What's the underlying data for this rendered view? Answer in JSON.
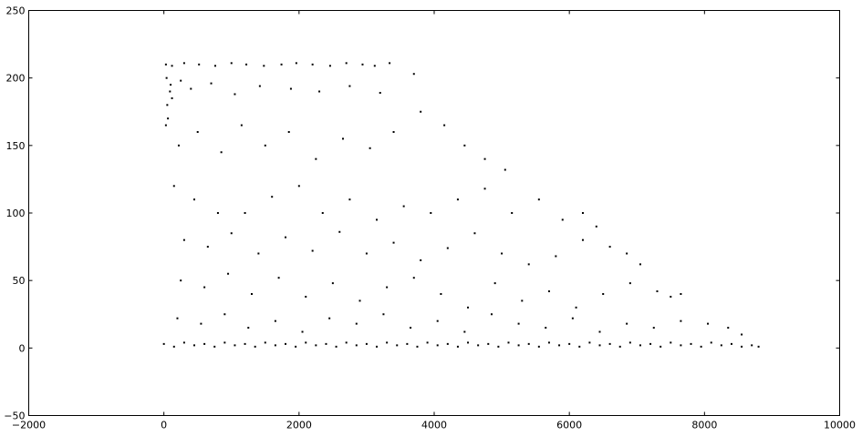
{
  "chart_data": {
    "type": "scatter",
    "title": "",
    "xlabel": "",
    "ylabel": "",
    "xlim": [
      -2000,
      10000
    ],
    "ylim": [
      -50,
      250
    ],
    "x_ticks": [
      -2000,
      0,
      2000,
      4000,
      6000,
      8000,
      10000
    ],
    "y_ticks": [
      -50,
      0,
      50,
      100,
      150,
      200,
      250
    ],
    "x_tick_labels": [
      "−2000",
      "0",
      "2000",
      "4000",
      "6000",
      "8000",
      "10000"
    ],
    "y_tick_labels": [
      "−50",
      "0",
      "50",
      "100",
      "150",
      "200",
      "250"
    ],
    "grid": false,
    "legend": "none",
    "marker_color": "#000000",
    "series": [
      {
        "points": [
          [
            30,
            210
          ],
          [
            120,
            209
          ],
          [
            300,
            211
          ],
          [
            520,
            210
          ],
          [
            760,
            209
          ],
          [
            1000,
            211
          ],
          [
            1220,
            210
          ],
          [
            1480,
            209
          ],
          [
            1740,
            210
          ],
          [
            1960,
            211
          ],
          [
            2200,
            210
          ],
          [
            2460,
            209
          ],
          [
            2700,
            211
          ],
          [
            2940,
            210
          ],
          [
            3120,
            209
          ],
          [
            3340,
            211
          ],
          [
            40,
            200
          ],
          [
            90,
            190
          ],
          [
            50,
            180
          ],
          [
            120,
            185
          ],
          [
            60,
            170
          ],
          [
            30,
            165
          ],
          [
            100,
            195
          ],
          [
            250,
            198
          ],
          [
            400,
            192
          ],
          [
            700,
            196
          ],
          [
            1050,
            188
          ],
          [
            1420,
            194
          ],
          [
            1880,
            192
          ],
          [
            2300,
            190
          ],
          [
            2750,
            194
          ],
          [
            3200,
            189
          ],
          [
            3700,
            203
          ],
          [
            220,
            150
          ],
          [
            500,
            160
          ],
          [
            850,
            145
          ],
          [
            1150,
            165
          ],
          [
            1500,
            150
          ],
          [
            1850,
            160
          ],
          [
            2250,
            140
          ],
          [
            2650,
            155
          ],
          [
            3050,
            148
          ],
          [
            3400,
            160
          ],
          [
            3800,
            175
          ],
          [
            4150,
            165
          ],
          [
            4450,
            150
          ],
          [
            4750,
            140
          ],
          [
            5050,
            132
          ],
          [
            150,
            120
          ],
          [
            450,
            110
          ],
          [
            800,
            100
          ],
          [
            1200,
            100
          ],
          [
            1600,
            112
          ],
          [
            2000,
            120
          ],
          [
            2350,
            100
          ],
          [
            2750,
            110
          ],
          [
            3150,
            95
          ],
          [
            3550,
            105
          ],
          [
            3950,
            100
          ],
          [
            4350,
            110
          ],
          [
            4750,
            118
          ],
          [
            5150,
            100
          ],
          [
            5550,
            110
          ],
          [
            5900,
            95
          ],
          [
            6200,
            100
          ],
          [
            6400,
            90
          ],
          [
            300,
            80
          ],
          [
            650,
            75
          ],
          [
            1000,
            85
          ],
          [
            1400,
            70
          ],
          [
            1800,
            82
          ],
          [
            2200,
            72
          ],
          [
            2600,
            86
          ],
          [
            3000,
            70
          ],
          [
            3400,
            78
          ],
          [
            3800,
            65
          ],
          [
            4200,
            74
          ],
          [
            4600,
            85
          ],
          [
            5000,
            70
          ],
          [
            5400,
            62
          ],
          [
            5800,
            68
          ],
          [
            6200,
            80
          ],
          [
            6600,
            75
          ],
          [
            6850,
            70
          ],
          [
            7050,
            62
          ],
          [
            250,
            50
          ],
          [
            600,
            45
          ],
          [
            950,
            55
          ],
          [
            1300,
            40
          ],
          [
            1700,
            52
          ],
          [
            2100,
            38
          ],
          [
            2500,
            48
          ],
          [
            2900,
            35
          ],
          [
            3300,
            45
          ],
          [
            3700,
            52
          ],
          [
            4100,
            40
          ],
          [
            4500,
            30
          ],
          [
            4900,
            48
          ],
          [
            5300,
            35
          ],
          [
            5700,
            42
          ],
          [
            6100,
            30
          ],
          [
            6500,
            40
          ],
          [
            6900,
            48
          ],
          [
            7300,
            42
          ],
          [
            7500,
            38
          ],
          [
            7650,
            40
          ],
          [
            200,
            22
          ],
          [
            550,
            18
          ],
          [
            900,
            25
          ],
          [
            1250,
            15
          ],
          [
            1650,
            20
          ],
          [
            2050,
            12
          ],
          [
            2450,
            22
          ],
          [
            2850,
            18
          ],
          [
            3250,
            25
          ],
          [
            3650,
            15
          ],
          [
            4050,
            20
          ],
          [
            4450,
            12
          ],
          [
            4850,
            25
          ],
          [
            5250,
            18
          ],
          [
            5650,
            15
          ],
          [
            6050,
            22
          ],
          [
            6450,
            12
          ],
          [
            6850,
            18
          ],
          [
            7250,
            15
          ],
          [
            7650,
            20
          ],
          [
            8050,
            18
          ],
          [
            8350,
            15
          ],
          [
            8550,
            10
          ],
          [
            0,
            3
          ],
          [
            150,
            1
          ],
          [
            300,
            4
          ],
          [
            450,
            2
          ],
          [
            600,
            3
          ],
          [
            750,
            1
          ],
          [
            900,
            4
          ],
          [
            1050,
            2
          ],
          [
            1200,
            3
          ],
          [
            1350,
            1
          ],
          [
            1500,
            4
          ],
          [
            1650,
            2
          ],
          [
            1800,
            3
          ],
          [
            1950,
            1
          ],
          [
            2100,
            4
          ],
          [
            2250,
            2
          ],
          [
            2400,
            3
          ],
          [
            2550,
            1
          ],
          [
            2700,
            4
          ],
          [
            2850,
            2
          ],
          [
            3000,
            3
          ],
          [
            3150,
            1
          ],
          [
            3300,
            4
          ],
          [
            3450,
            2
          ],
          [
            3600,
            3
          ],
          [
            3750,
            1
          ],
          [
            3900,
            4
          ],
          [
            4050,
            2
          ],
          [
            4200,
            3
          ],
          [
            4350,
            1
          ],
          [
            4500,
            4
          ],
          [
            4650,
            2
          ],
          [
            4800,
            3
          ],
          [
            4950,
            1
          ],
          [
            5100,
            4
          ],
          [
            5250,
            2
          ],
          [
            5400,
            3
          ],
          [
            5550,
            1
          ],
          [
            5700,
            4
          ],
          [
            5850,
            2
          ],
          [
            6000,
            3
          ],
          [
            6150,
            1
          ],
          [
            6300,
            4
          ],
          [
            6450,
            2
          ],
          [
            6600,
            3
          ],
          [
            6750,
            1
          ],
          [
            6900,
            4
          ],
          [
            7050,
            2
          ],
          [
            7200,
            3
          ],
          [
            7350,
            1
          ],
          [
            7500,
            4
          ],
          [
            7650,
            2
          ],
          [
            7800,
            3
          ],
          [
            7950,
            1
          ],
          [
            8100,
            4
          ],
          [
            8250,
            2
          ],
          [
            8400,
            3
          ],
          [
            8550,
            1
          ],
          [
            8700,
            2
          ],
          [
            8800,
            1
          ]
        ]
      }
    ]
  }
}
